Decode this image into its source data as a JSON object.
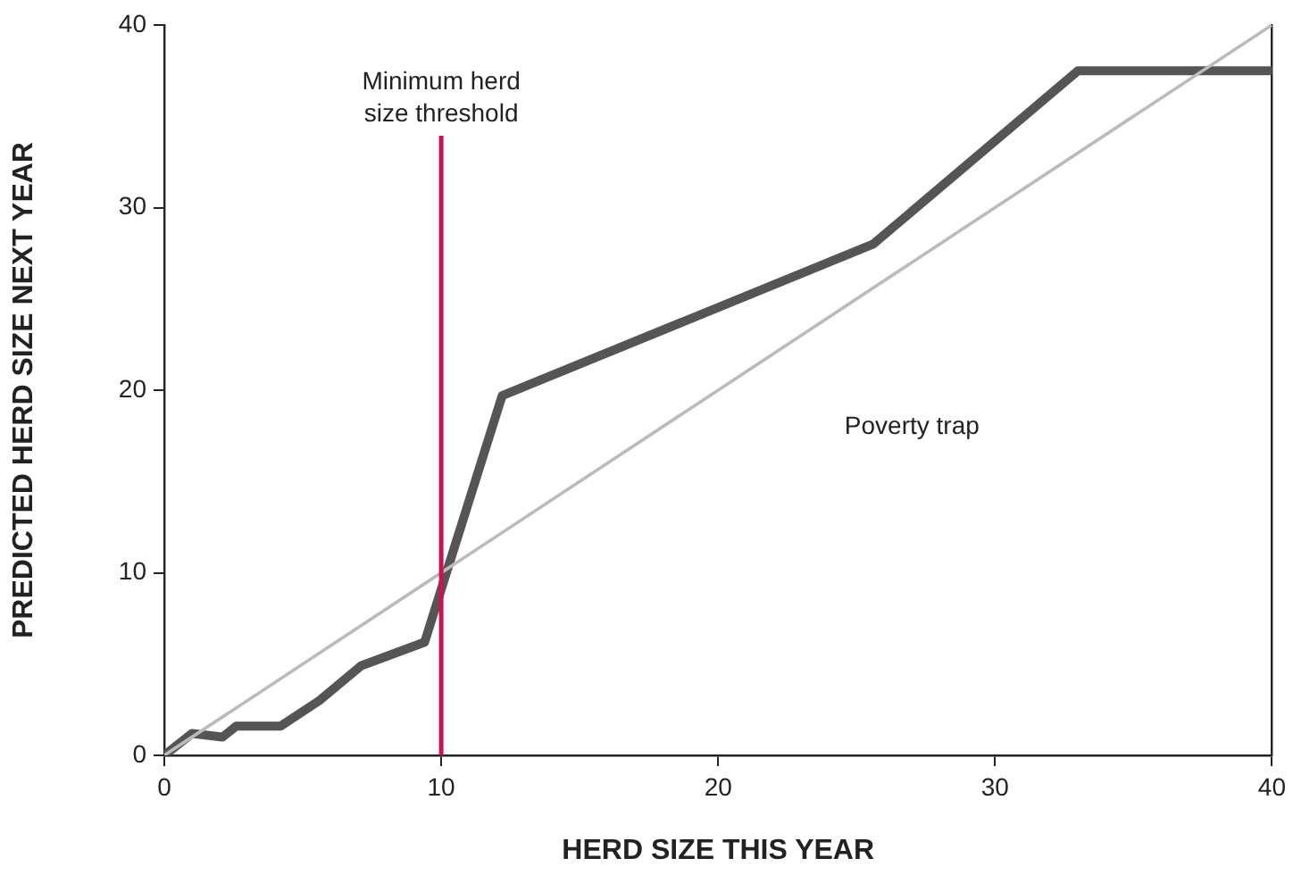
{
  "chart_data": {
    "type": "line",
    "xlabel": "HERD SIZE THIS YEAR",
    "ylabel": "PREDICTED HERD SIZE NEXT YEAR",
    "series": [
      {
        "color": "#bbbbbb",
        "x": [
          0,
          40
        ],
        "values": [
          0,
          40
        ]
      },
      {
        "color": "#555555",
        "x": [
          0,
          1.0,
          2.1,
          2.6,
          4.2,
          5.6,
          7.1,
          9.4,
          12.2,
          25.6,
          33.0,
          40
        ],
        "values": [
          0,
          1.2,
          1.0,
          1.6,
          1.6,
          3.0,
          4.9,
          6.2,
          19.7,
          28.0,
          37.5,
          37.5
        ]
      }
    ],
    "xlim": [
      0,
      40
    ],
    "ylim": [
      0,
      40
    ],
    "xticks": [
      0,
      10,
      20,
      30,
      40
    ],
    "yticks": [
      0,
      10,
      20,
      30,
      40
    ],
    "grid": false,
    "legend": false,
    "marker": "none",
    "line_style": "solid",
    "ref_lines": [
      {
        "axis": "x",
        "value": 10,
        "label": "Minimum herd size threshold",
        "color": "#d0104c"
      }
    ],
    "annotations": [
      "Poverty trap"
    ]
  }
}
